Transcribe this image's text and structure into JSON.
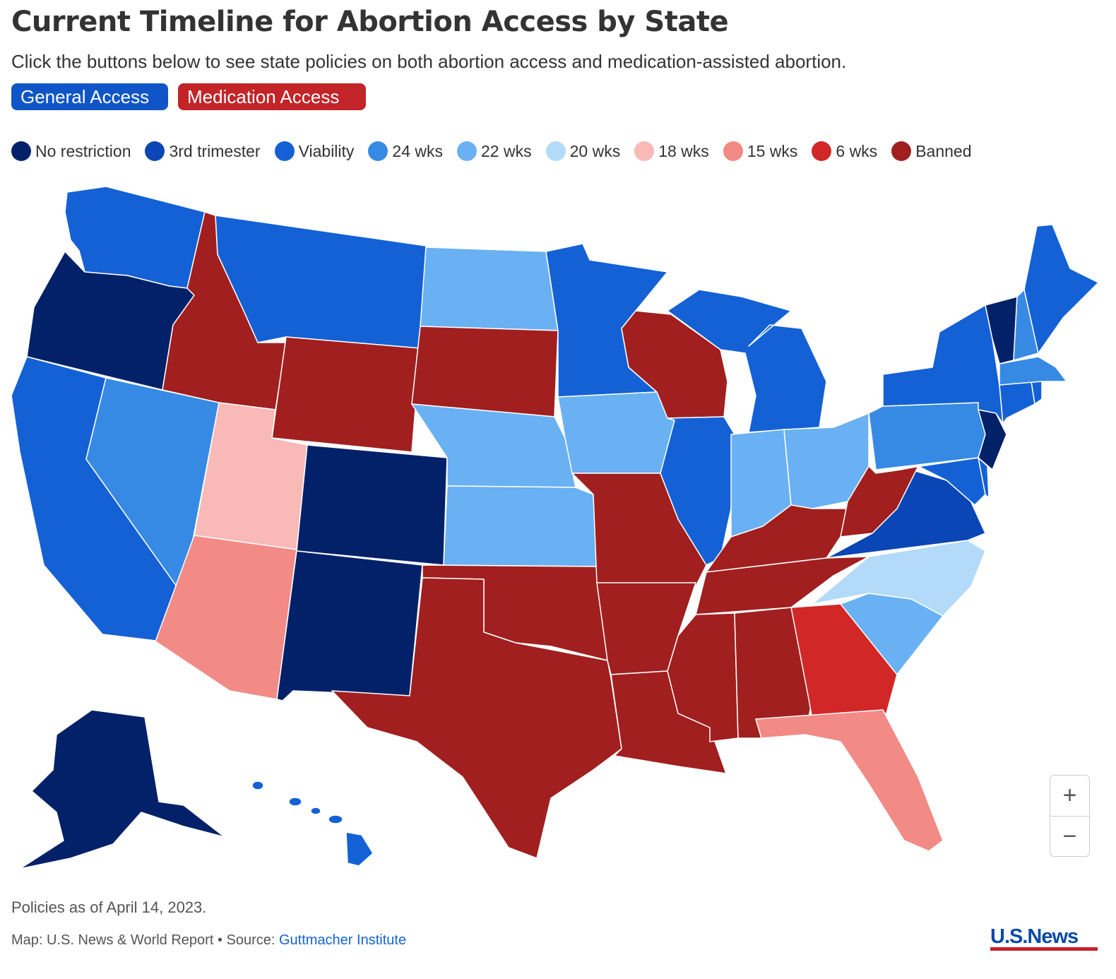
{
  "header": {
    "title": "Current Timeline for Abortion Access by State",
    "subtitle": "Click the buttons below to see state policies on both abortion access and medication-assisted abortion."
  },
  "buttons": [
    {
      "label": "General Access",
      "color": "#0f55c7"
    },
    {
      "label": "Medication Access",
      "color": "#c22428"
    }
  ],
  "legend": [
    {
      "label": "No restriction",
      "color": "#022169"
    },
    {
      "label": "3rd trimester",
      "color": "#0a46b5"
    },
    {
      "label": "Viability",
      "color": "#1461d6"
    },
    {
      "label": "24 wks",
      "color": "#368ae3"
    },
    {
      "label": "22 wks",
      "color": "#69b1f2"
    },
    {
      "label": "20 wks",
      "color": "#b3daf9"
    },
    {
      "label": "18 wks",
      "color": "#f8b9b7"
    },
    {
      "label": "15 wks",
      "color": "#f28a86"
    },
    {
      "label": "6 wks",
      "color": "#d22727"
    },
    {
      "label": "Banned",
      "color": "#a11f1f"
    }
  ],
  "state_policies": {
    "WA": "Viability",
    "OR": "No restriction",
    "CA": "Viability",
    "NV": "24 wks",
    "ID": "Banned",
    "MT": "Viability",
    "WY": "Banned",
    "UT": "18 wks",
    "AZ": "15 wks",
    "CO": "No restriction",
    "NM": "No restriction",
    "ND": "22 wks",
    "SD": "Banned",
    "NE": "22 wks",
    "KS": "22 wks",
    "OK": "Banned",
    "TX": "Banned",
    "MN": "Viability",
    "IA": "22 wks",
    "MO": "Banned",
    "AR": "Banned",
    "LA": "Banned",
    "WI": "Banned",
    "IL": "Viability",
    "MI": "Viability",
    "IN": "22 wks",
    "OH": "22 wks",
    "KY": "Banned",
    "TN": "Banned",
    "MS": "Banned",
    "AL": "Banned",
    "GA": "6 wks",
    "FL": "15 wks",
    "SC": "22 wks",
    "NC": "20 wks",
    "VA": "3rd trimester",
    "WV": "Banned",
    "PA": "24 wks",
    "NY": "Viability",
    "VT": "No restriction",
    "NH": "24 wks",
    "ME": "Viability",
    "MA": "24 wks",
    "RI": "Viability",
    "CT": "Viability",
    "NJ": "No restriction",
    "DE": "Viability",
    "MD": "Viability",
    "AK": "No restriction",
    "HI": "Viability"
  },
  "zoom": {
    "in_label": "+",
    "out_label": "−"
  },
  "footer": {
    "note": "Policies as of April 14, 2023.",
    "credit_prefix": "Map: U.S. News & World Report • Source: ",
    "source_link": "Guttmacher Institute",
    "logo_text": "U.S.News"
  }
}
